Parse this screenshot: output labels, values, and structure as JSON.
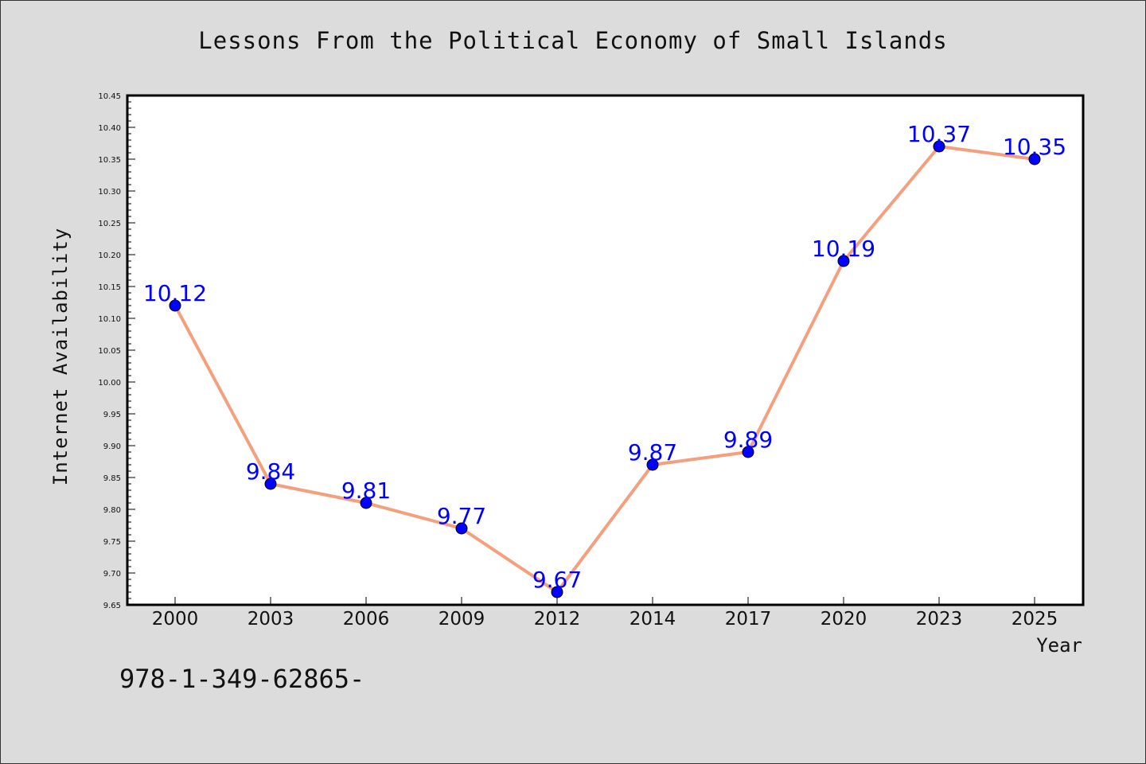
{
  "chart_data": {
    "type": "line",
    "title": "Lessons From the Political Economy of Small Islands",
    "xlabel": "Year",
    "ylabel": "Internet Availability",
    "categories": [
      "2000",
      "2003",
      "2006",
      "2009",
      "2012",
      "2014",
      "2017",
      "2020",
      "2023",
      "2025"
    ],
    "series": [
      {
        "values": [
          10.12,
          9.84,
          9.81,
          9.77,
          9.67,
          9.87,
          9.89,
          10.19,
          10.37,
          10.35
        ],
        "line_color": "#f4a07e",
        "marker_color": "#0000ff",
        "data_labels": [
          "10.12",
          "9.84",
          "9.81",
          "9.77",
          "9.67",
          "9.87",
          "9.89",
          "10.19",
          "10.37",
          "10.35"
        ]
      }
    ],
    "ylim": [
      9.65,
      10.45
    ],
    "yticks": [
      "9.65",
      "9.70",
      "9.75",
      "9.80",
      "9.85",
      "9.90",
      "9.95",
      "10.00",
      "10.05",
      "10.10",
      "10.15",
      "10.20",
      "10.25",
      "10.30",
      "10.35",
      "10.40",
      "10.45"
    ],
    "grid": false,
    "legend": "none"
  },
  "footnote": "978-1-349-62865-"
}
